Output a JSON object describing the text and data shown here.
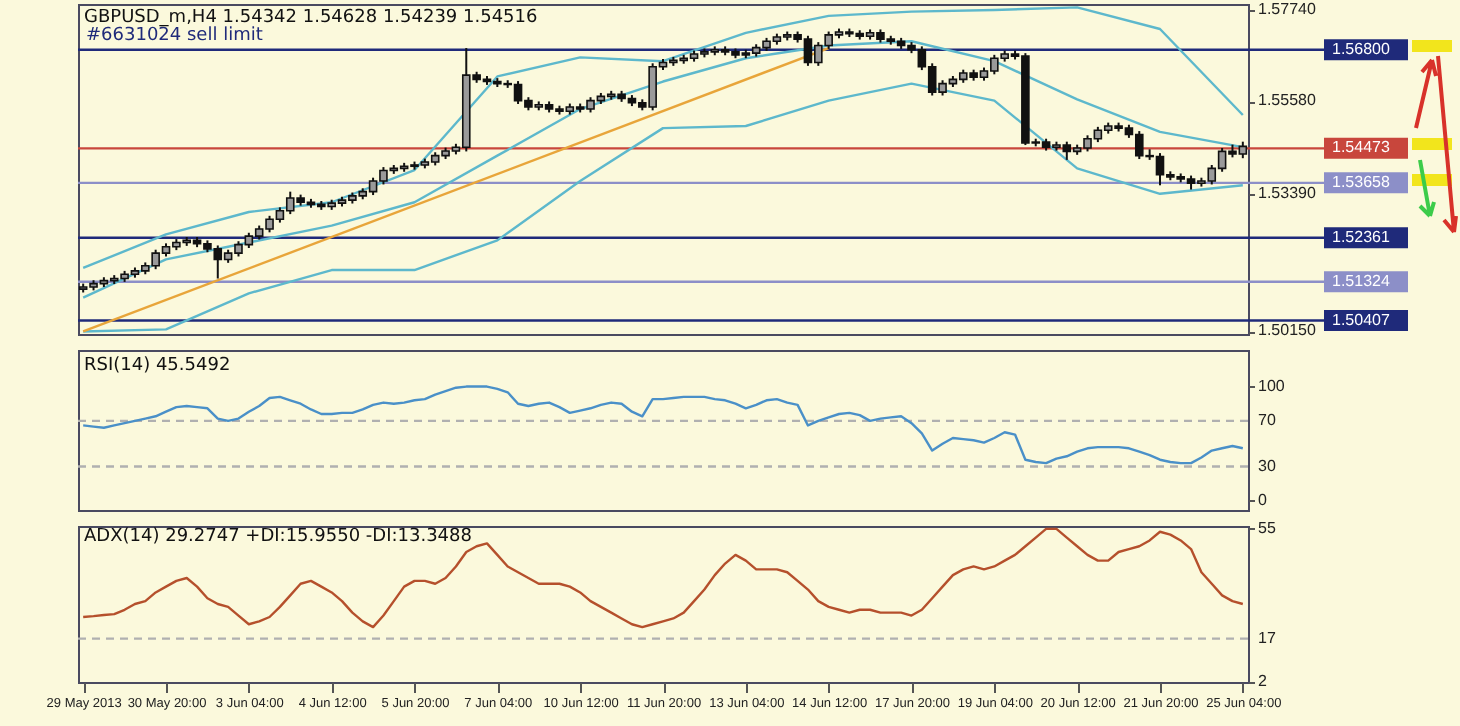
{
  "chart_data": [
    {
      "type": "candlestick",
      "title": "GBPUSD_m,H4 1.54342 1.54628 1.54239 1.54516",
      "annotations": [
        "#6631024 sell limit"
      ],
      "categories": [
        "29 May 2013",
        null,
        null,
        null,
        null,
        null,
        null,
        null,
        "30 May 20:00",
        null,
        null,
        null,
        null,
        null,
        null,
        null,
        "3 Jun 04:00",
        null,
        null,
        null,
        null,
        null,
        null,
        null,
        "4 Jun 12:00",
        null,
        null,
        null,
        null,
        null,
        null,
        null,
        "5 Jun 20:00",
        null,
        null,
        null,
        null,
        null,
        null,
        null,
        "7 Jun 04:00",
        null,
        null,
        null,
        null,
        null,
        null,
        null,
        "10 Jun 12:00",
        null,
        null,
        null,
        null,
        null,
        null,
        null,
        "11 Jun 20:00",
        null,
        null,
        null,
        null,
        null,
        null,
        null,
        "13 Jun 04:00",
        null,
        null,
        null,
        null,
        null,
        null,
        null,
        "14 Jun 12:00",
        null,
        null,
        null,
        null,
        null,
        null,
        null,
        "17 Jun 20:00",
        null,
        null,
        null,
        null,
        null,
        null,
        null,
        "19 Jun 04:00",
        null,
        null,
        null,
        null,
        null,
        null,
        null,
        "20 Jun 12:00",
        null,
        null,
        null,
        null,
        null,
        null,
        null,
        "21 Jun 20:00",
        null,
        null,
        null,
        null,
        null,
        null,
        null,
        "25 Jun 04:00"
      ],
      "ohlc": [
        [
          1.5115,
          1.5128,
          1.5107,
          1.512
        ],
        [
          1.512,
          1.5136,
          1.5112,
          1.5128
        ],
        [
          1.5128,
          1.5143,
          1.512,
          1.5135
        ],
        [
          1.5135,
          1.5148,
          1.5127,
          1.514
        ],
        [
          1.514,
          1.5158,
          1.5132,
          1.515
        ],
        [
          1.515,
          1.5166,
          1.5142,
          1.5158
        ],
        [
          1.5158,
          1.5178,
          1.515,
          1.517
        ],
        [
          1.517,
          1.5208,
          1.5162,
          1.52
        ],
        [
          1.52,
          1.5223,
          1.5192,
          1.5215
        ],
        [
          1.5215,
          1.5233,
          1.5207,
          1.5225
        ],
        [
          1.5225,
          1.5238,
          1.5217,
          1.523
        ],
        [
          1.523,
          1.5238,
          1.5214,
          1.5222
        ],
        [
          1.5222,
          1.523,
          1.5202,
          1.521
        ],
        [
          1.521,
          1.5218,
          1.514,
          1.5185
        ],
        [
          1.5185,
          1.5208,
          1.5177,
          1.52
        ],
        [
          1.52,
          1.5228,
          1.5192,
          1.522
        ],
        [
          1.522,
          1.5248,
          1.5212,
          1.524
        ],
        [
          1.524,
          1.5265,
          1.5232,
          1.5257
        ],
        [
          1.5257,
          1.5288,
          1.5249,
          1.528
        ],
        [
          1.528,
          1.5308,
          1.5272,
          1.53
        ],
        [
          1.53,
          1.5345,
          1.5292,
          1.533
        ],
        [
          1.533,
          1.5338,
          1.5312,
          1.532
        ],
        [
          1.532,
          1.5328,
          1.5307,
          1.5315
        ],
        [
          1.5315,
          1.5323,
          1.5302,
          1.531
        ],
        [
          1.531,
          1.5326,
          1.5302,
          1.5318
        ],
        [
          1.5318,
          1.5333,
          1.531,
          1.5325
        ],
        [
          1.5325,
          1.5343,
          1.5317,
          1.5335
        ],
        [
          1.5335,
          1.5353,
          1.5327,
          1.5345
        ],
        [
          1.5345,
          1.5378,
          1.5337,
          1.537
        ],
        [
          1.537,
          1.5403,
          1.5362,
          1.5395
        ],
        [
          1.5395,
          1.5408,
          1.5387,
          1.54
        ],
        [
          1.54,
          1.5413,
          1.5392,
          1.5405
        ],
        [
          1.5405,
          1.5416,
          1.5397,
          1.5408
        ],
        [
          1.5408,
          1.5423,
          1.54,
          1.5415
        ],
        [
          1.5415,
          1.5438,
          1.5407,
          1.543
        ],
        [
          1.543,
          1.5449,
          1.5422,
          1.5441
        ],
        [
          1.5441,
          1.5458,
          1.5433,
          1.545
        ],
        [
          1.545,
          1.5684,
          1.544,
          1.562
        ],
        [
          1.562,
          1.5628,
          1.5602,
          1.561
        ],
        [
          1.561,
          1.5618,
          1.5597,
          1.5605
        ],
        [
          1.5605,
          1.5613,
          1.5592,
          1.56
        ],
        [
          1.56,
          1.5608,
          1.559,
          1.5598
        ],
        [
          1.5598,
          1.5606,
          1.5552,
          1.556
        ],
        [
          1.556,
          1.5568,
          1.5537,
          1.5545
        ],
        [
          1.5545,
          1.5558,
          1.5537,
          1.555
        ],
        [
          1.555,
          1.5558,
          1.5532,
          1.554
        ],
        [
          1.554,
          1.5548,
          1.5527,
          1.5535
        ],
        [
          1.5535,
          1.5553,
          1.5527,
          1.5545
        ],
        [
          1.5545,
          1.5553,
          1.5532,
          1.554
        ],
        [
          1.554,
          1.5568,
          1.5532,
          1.556
        ],
        [
          1.556,
          1.5578,
          1.5552,
          1.557
        ],
        [
          1.557,
          1.5583,
          1.5562,
          1.5575
        ],
        [
          1.5575,
          1.5583,
          1.5557,
          1.5565
        ],
        [
          1.5565,
          1.5573,
          1.5547,
          1.5555
        ],
        [
          1.5555,
          1.5563,
          1.5537,
          1.5545
        ],
        [
          1.5545,
          1.5648,
          1.5537,
          1.564
        ],
        [
          1.564,
          1.5658,
          1.5632,
          1.565
        ],
        [
          1.565,
          1.5663,
          1.5642,
          1.5655
        ],
        [
          1.5655,
          1.5668,
          1.5647,
          1.566
        ],
        [
          1.566,
          1.5678,
          1.5652,
          1.567
        ],
        [
          1.567,
          1.5683,
          1.5662,
          1.5675
        ],
        [
          1.5675,
          1.5688,
          1.5667,
          1.568
        ],
        [
          1.568,
          1.5688,
          1.5667,
          1.5675
        ],
        [
          1.5675,
          1.5683,
          1.566,
          1.5668
        ],
        [
          1.5668,
          1.568,
          1.566,
          1.5672
        ],
        [
          1.5672,
          1.5693,
          1.5664,
          1.5685
        ],
        [
          1.5685,
          1.5708,
          1.5677,
          1.57
        ],
        [
          1.57,
          1.5718,
          1.5692,
          1.571
        ],
        [
          1.571,
          1.5723,
          1.5702,
          1.5715
        ],
        [
          1.5715,
          1.5723,
          1.5697,
          1.5705
        ],
        [
          1.5705,
          1.5713,
          1.5642,
          1.565
        ],
        [
          1.565,
          1.5698,
          1.5642,
          1.569
        ],
        [
          1.569,
          1.5723,
          1.5682,
          1.5715
        ],
        [
          1.5715,
          1.573,
          1.5707,
          1.5722
        ],
        [
          1.5722,
          1.573,
          1.571,
          1.5718
        ],
        [
          1.5718,
          1.5726,
          1.5704,
          1.5712
        ],
        [
          1.5712,
          1.5728,
          1.5704,
          1.572
        ],
        [
          1.572,
          1.5728,
          1.5697,
          1.5705
        ],
        [
          1.5705,
          1.5713,
          1.5692,
          1.57
        ],
        [
          1.57,
          1.5708,
          1.5682,
          1.569
        ],
        [
          1.569,
          1.5698,
          1.5672,
          1.568
        ],
        [
          1.568,
          1.5688,
          1.5632,
          1.564
        ],
        [
          1.564,
          1.5648,
          1.5572,
          1.558
        ],
        [
          1.558,
          1.5608,
          1.5572,
          1.56
        ],
        [
          1.56,
          1.5618,
          1.5592,
          1.561
        ],
        [
          1.561,
          1.5633,
          1.5602,
          1.5625
        ],
        [
          1.5625,
          1.5633,
          1.5607,
          1.5615
        ],
        [
          1.5615,
          1.5638,
          1.5607,
          1.563
        ],
        [
          1.563,
          1.5668,
          1.5622,
          1.566
        ],
        [
          1.566,
          1.5678,
          1.5652,
          1.567
        ],
        [
          1.567,
          1.5678,
          1.5657,
          1.5665
        ],
        [
          1.5665,
          1.5672,
          1.5455,
          1.546
        ],
        [
          1.546,
          1.547,
          1.5452,
          1.5462
        ],
        [
          1.5462,
          1.547,
          1.5442,
          1.545
        ],
        [
          1.545,
          1.5463,
          1.5442,
          1.5455
        ],
        [
          1.5455,
          1.5463,
          1.542,
          1.544
        ],
        [
          1.544,
          1.5456,
          1.5432,
          1.5448
        ],
        [
          1.5448,
          1.5478,
          1.544,
          1.547
        ],
        [
          1.547,
          1.5498,
          1.5462,
          1.549
        ],
        [
          1.549,
          1.5508,
          1.5482,
          1.55
        ],
        [
          1.55,
          1.5508,
          1.5487,
          1.5495
        ],
        [
          1.5495,
          1.5503,
          1.5472,
          1.548
        ],
        [
          1.548,
          1.5488,
          1.5422,
          1.543
        ],
        [
          1.543,
          1.5445,
          1.542,
          1.5428
        ],
        [
          1.5428,
          1.5436,
          1.536,
          1.5385
        ],
        [
          1.5385,
          1.5393,
          1.5372,
          1.538
        ],
        [
          1.538,
          1.5388,
          1.5367,
          1.5375
        ],
        [
          1.5375,
          1.5383,
          1.535,
          1.5365
        ],
        [
          1.5365,
          1.5378,
          1.5357,
          1.537
        ],
        [
          1.537,
          1.5408,
          1.5362,
          1.54
        ],
        [
          1.54,
          1.5448,
          1.5392,
          1.544
        ],
        [
          1.544,
          1.5456,
          1.5426,
          1.5434
        ],
        [
          1.5434,
          1.5463,
          1.5424,
          1.5452
        ]
      ],
      "series": [
        {
          "type": "line",
          "color": "#5db8cc",
          "x": [
            "29 May 2013",
            "30 May 20:00",
            "3 Jun 04:00",
            "4 Jun 12:00",
            "5 Jun 20:00",
            "7 Jun 04:00",
            "10 Jun 12:00",
            "11 Jun 20:00",
            "13 Jun 04:00",
            "14 Jun 12:00",
            "17 Jun 20:00",
            "19 Jun 04:00",
            "20 Jun 12:00",
            "21 Jun 20:00",
            "25 Jun 04:00"
          ],
          "values": [
            1.5165,
            1.5244,
            1.5297,
            1.532,
            1.5396,
            1.5617,
            1.5662,
            1.5653,
            1.572,
            1.576,
            1.577,
            1.5774,
            1.578,
            1.5729,
            1.5526
          ]
        },
        {
          "type": "line",
          "color": "#5db8cc",
          "x": [
            "29 May 2013",
            "30 May 20:00",
            "3 Jun 04:00",
            "4 Jun 12:00",
            "5 Jun 20:00",
            "7 Jun 04:00",
            "10 Jun 12:00",
            "11 Jun 20:00",
            "13 Jun 04:00",
            "14 Jun 12:00",
            "17 Jun 20:00",
            "19 Jun 04:00",
            "20 Jun 12:00",
            "21 Jun 20:00",
            "25 Jun 04:00"
          ],
          "values": [
            1.5095,
            1.5185,
            1.5225,
            1.5265,
            1.532,
            1.543,
            1.554,
            1.5605,
            1.566,
            1.569,
            1.57,
            1.5653,
            1.5563,
            1.5486,
            1.545
          ]
        },
        {
          "type": "line",
          "color": "#5db8cc",
          "x": [
            "29 May 2013",
            "30 May 20:00",
            "3 Jun 04:00",
            "4 Jun 12:00",
            "5 Jun 20:00",
            "7 Jun 04:00",
            "10 Jun 12:00",
            "11 Jun 20:00",
            "13 Jun 04:00",
            "14 Jun 12:00",
            "17 Jun 20:00",
            "19 Jun 04:00",
            "20 Jun 12:00",
            "21 Jun 20:00",
            "25 Jun 04:00"
          ],
          "values": [
            1.5015,
            1.502,
            1.5105,
            1.516,
            1.516,
            1.523,
            1.537,
            1.5495,
            1.55,
            1.556,
            1.56,
            1.556,
            1.54,
            1.534,
            1.536
          ]
        },
        {
          "type": "line",
          "color": "#e8a53a",
          "x": [
            "29 May 2013",
            "14 Jun 12:00"
          ],
          "values": [
            1.5015,
            1.5684
          ]
        }
      ],
      "ylim": [
        1.5009,
        1.5788
      ],
      "yticks": [
        {
          "value": 1.5774,
          "label": "1.57740"
        },
        {
          "value": 1.5558,
          "label": "1.55580"
        },
        {
          "value": 1.5339,
          "label": "1.53390"
        },
        {
          "value": 1.5015,
          "label": "1.50150"
        }
      ],
      "ref_lines": [
        {
          "axis": "y",
          "value": 1.568,
          "label": "1.56800",
          "color": "#1f2a7a"
        },
        {
          "axis": "y",
          "value": 1.54473,
          "label": "1.54473",
          "color": "#c8463c"
        },
        {
          "axis": "y",
          "value": 1.53658,
          "label": "1.53658",
          "color": "#8c8fc8"
        },
        {
          "axis": "y",
          "value": 1.52361,
          "label": "1.52361",
          "color": "#1f2a7a"
        },
        {
          "axis": "y",
          "value": 1.51324,
          "label": "1.51324",
          "color": "#8c8fc8"
        },
        {
          "axis": "y",
          "value": 1.50407,
          "label": "1.50407",
          "color": "#1f2a7a"
        }
      ],
      "tick_labels": "y"
    },
    {
      "type": "line",
      "title": "RSI(14) 45.5492",
      "categories": [
        "29 May 2013",
        null,
        null,
        null,
        null,
        null,
        null,
        null,
        "30 May 20:00",
        null,
        null,
        null,
        null,
        null,
        null,
        null,
        "3 Jun 04:00",
        null,
        null,
        null,
        null,
        null,
        null,
        null,
        "4 Jun 12:00",
        null,
        null,
        null,
        null,
        null,
        null,
        null,
        "5 Jun 20:00",
        null,
        null,
        null,
        null,
        null,
        null,
        null,
        "7 Jun 04:00",
        null,
        null,
        null,
        null,
        null,
        null,
        null,
        "10 Jun 12:00",
        null,
        null,
        null,
        null,
        null,
        null,
        null,
        "11 Jun 20:00",
        null,
        null,
        null,
        null,
        null,
        null,
        null,
        "13 Jun 04:00",
        null,
        null,
        null,
        null,
        null,
        null,
        null,
        "14 Jun 12:00",
        null,
        null,
        null,
        null,
        null,
        null,
        null,
        "17 Jun 20:00",
        null,
        null,
        null,
        null,
        null,
        null,
        null,
        "19 Jun 04:00",
        null,
        null,
        null,
        null,
        null,
        null,
        null,
        "20 Jun 12:00",
        null,
        null,
        null,
        null,
        null,
        null,
        null,
        "21 Jun 20:00",
        null,
        null,
        null,
        null,
        null,
        null,
        null,
        "25 Jun 04:00"
      ],
      "series": [
        {
          "color": "#4a90c8",
          "values": [
            66,
            65,
            64,
            66,
            68,
            70,
            72,
            74,
            78,
            82,
            83,
            82,
            81,
            72,
            70,
            72,
            78,
            83,
            90,
            91,
            88,
            85,
            80,
            76,
            76,
            77,
            77,
            80,
            84,
            86,
            85,
            86,
            88,
            89,
            93,
            96,
            99,
            100,
            100,
            100,
            98,
            95,
            85,
            83,
            85,
            86,
            82,
            77,
            79,
            81,
            84,
            86,
            85,
            78,
            74,
            89,
            89,
            90,
            91,
            91,
            91,
            89,
            88,
            85,
            81,
            84,
            88,
            89,
            86,
            84,
            66,
            70,
            73,
            76,
            77,
            75,
            70,
            72,
            73,
            74,
            68,
            59,
            44,
            50,
            55,
            54,
            53,
            51,
            55,
            60,
            58,
            36,
            34,
            33,
            37,
            39,
            43,
            46,
            47,
            47,
            47,
            46,
            43,
            40,
            36,
            34,
            33,
            33,
            38,
            44,
            46,
            48,
            46
          ]
        }
      ],
      "ylim": [
        -8,
        132
      ],
      "yticks": [
        100,
        70,
        30,
        0
      ],
      "ref_lines": [
        {
          "axis": "y",
          "value": 70,
          "color": "#b0b0b0",
          "line_style": "dashed"
        },
        {
          "axis": "y",
          "value": 30,
          "color": "#b0b0b0",
          "line_style": "dashed"
        }
      ],
      "tick_labels": "y"
    },
    {
      "type": "line",
      "title": "ADX(14) 29.2747 +DI:15.9550 -DI:13.3488",
      "categories": [
        "29 May 2013",
        null,
        null,
        null,
        null,
        null,
        null,
        null,
        "30 May 20:00",
        null,
        null,
        null,
        null,
        null,
        null,
        null,
        "3 Jun 04:00",
        null,
        null,
        null,
        null,
        null,
        null,
        null,
        "4 Jun 12:00",
        null,
        null,
        null,
        null,
        null,
        null,
        null,
        "5 Jun 20:00",
        null,
        null,
        null,
        null,
        null,
        null,
        null,
        "7 Jun 04:00",
        null,
        null,
        null,
        null,
        null,
        null,
        null,
        "10 Jun 12:00",
        null,
        null,
        null,
        null,
        null,
        null,
        null,
        "11 Jun 20:00",
        null,
        null,
        null,
        null,
        null,
        null,
        null,
        "13 Jun 04:00",
        null,
        null,
        null,
        null,
        null,
        null,
        null,
        "14 Jun 12:00",
        null,
        null,
        null,
        null,
        null,
        null,
        null,
        "17 Jun 20:00",
        null,
        null,
        null,
        null,
        null,
        null,
        null,
        "19 Jun 04:00",
        null,
        null,
        null,
        null,
        null,
        null,
        null,
        "20 Jun 12:00",
        null,
        null,
        null,
        null,
        null,
        null,
        null,
        "21 Jun 20:00",
        null,
        null,
        null,
        null,
        null,
        null,
        null,
        "25 Jun 04:00"
      ],
      "series": [
        {
          "color": "#b5502c",
          "values": [
            24.5,
            24.8,
            25.2,
            25.5,
            27,
            29,
            30,
            33,
            35,
            37,
            38,
            35,
            31,
            29,
            28,
            25,
            22,
            23,
            24.5,
            28,
            32,
            36,
            37,
            35,
            33,
            30,
            26,
            23,
            21,
            25,
            30,
            35,
            37,
            37,
            36,
            38,
            42,
            47,
            49,
            50,
            46,
            42,
            40,
            38,
            36,
            36,
            36,
            35,
            33,
            30,
            28,
            26,
            24,
            22,
            21,
            22,
            23,
            24,
            26,
            30,
            34,
            39,
            43,
            46,
            44,
            41,
            41,
            41,
            40,
            37,
            34,
            30,
            28,
            27,
            26,
            27,
            27,
            26,
            26,
            26,
            25,
            27,
            31,
            35,
            39,
            41,
            42,
            41,
            42,
            44,
            46,
            49,
            52,
            55,
            55,
            52,
            49,
            46,
            44,
            44,
            47,
            48,
            49,
            51,
            54,
            53,
            51,
            48,
            40,
            36,
            32,
            30,
            29
          ]
        }
      ],
      "ylim": [
        2,
        56
      ],
      "yticks": [
        55,
        17,
        2
      ],
      "ref_lines": [
        {
          "axis": "y",
          "value": 17,
          "color": "#b0b0b0",
          "line_style": "dashed"
        }
      ]
    }
  ]
}
